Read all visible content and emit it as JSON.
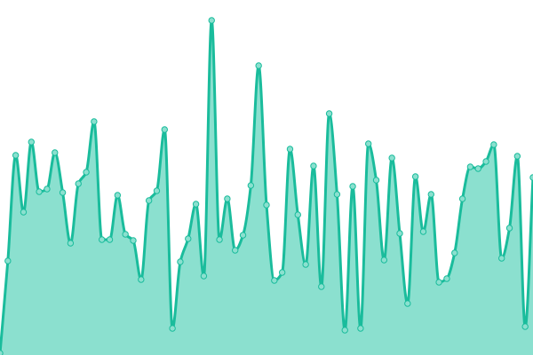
{
  "chart_data": {
    "type": "area",
    "title": "",
    "xlabel": "",
    "ylabel": "",
    "xlim": [
      0,
      68
    ],
    "ylim": [
      0,
      400
    ],
    "grid": false,
    "legend": "none",
    "curve": "smooth",
    "markers": true,
    "colors": {
      "line": "#1abc9c",
      "fill": "#8be0cf",
      "marker_fill": "#8be0cf"
    },
    "x": [
      0,
      1,
      2,
      3,
      4,
      5,
      6,
      7,
      8,
      9,
      10,
      11,
      12,
      13,
      14,
      15,
      16,
      17,
      18,
      19,
      20,
      21,
      22,
      23,
      24,
      25,
      26,
      27,
      28,
      29,
      30,
      31,
      32,
      33,
      34,
      35,
      36,
      37,
      38,
      39,
      40,
      41,
      42,
      43,
      44,
      45,
      46,
      47,
      48,
      49,
      50,
      51,
      52,
      53,
      54,
      55,
      56,
      57,
      58,
      59,
      60,
      61,
      62,
      63,
      64,
      65,
      66,
      67,
      68
    ],
    "series": [
      {
        "values": [
          2,
          106,
          225,
          161,
          240,
          184,
          187,
          228,
          183,
          126,
          193,
          206,
          263,
          130,
          130,
          180,
          136,
          129,
          85,
          174,
          185,
          254,
          30,
          105,
          131,
          170,
          89,
          377,
          130,
          176,
          118,
          135,
          191,
          326,
          169,
          84,
          93,
          232,
          158,
          102,
          213,
          77,
          272,
          181,
          28,
          190,
          30,
          238,
          197,
          107,
          222,
          137,
          58,
          201,
          139,
          181,
          82,
          86,
          115,
          176,
          212,
          210,
          218,
          237,
          109,
          143,
          224,
          32,
          200
        ]
      }
    ]
  }
}
